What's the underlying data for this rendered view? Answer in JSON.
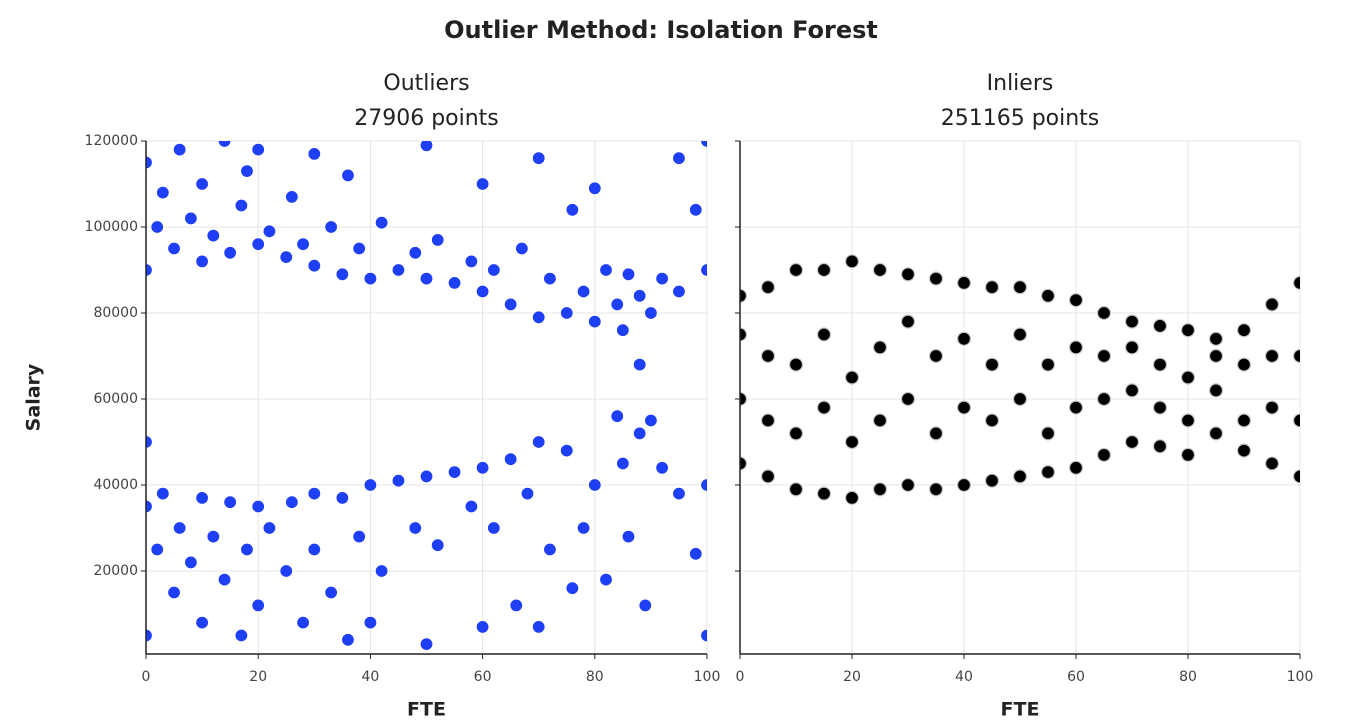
{
  "title": "Outlier Method: Isolation Forest",
  "chart_data": [
    {
      "type": "scatter",
      "title": "Outliers",
      "subtitle": "27906 points",
      "xlabel": "FTE",
      "ylabel": "Salary",
      "color": "#1f3ff5",
      "edgecolor": "#ffffff",
      "grid": true,
      "xlim": [
        0,
        100
      ],
      "xticks": [
        0,
        20,
        40,
        60,
        80,
        100
      ],
      "ylim": [
        700,
        120000
      ],
      "yticks": [
        20000,
        40000,
        60000,
        80000,
        100000,
        120000
      ],
      "x": [
        0,
        0,
        2,
        3,
        5,
        6,
        8,
        10,
        10,
        12,
        14,
        15,
        17,
        18,
        20,
        20,
        22,
        25,
        26,
        28,
        30,
        30,
        33,
        35,
        36,
        38,
        40,
        42,
        45,
        48,
        50,
        50,
        52,
        55,
        58,
        60,
        60,
        62,
        65,
        67,
        70,
        70,
        72,
        75,
        76,
        78,
        80,
        80,
        82,
        84,
        85,
        86,
        88,
        88,
        90,
        92,
        95,
        95,
        98,
        100,
        100,
        0,
        0,
        0,
        2,
        3,
        5,
        6,
        8,
        10,
        10,
        12,
        14,
        15,
        17,
        18,
        20,
        20,
        22,
        25,
        26,
        28,
        30,
        30,
        33,
        35,
        36,
        38,
        40,
        40,
        42,
        45,
        48,
        50,
        50,
        52,
        55,
        58,
        60,
        60,
        62,
        65,
        66,
        68,
        70,
        70,
        72,
        75,
        76,
        78,
        80,
        82,
        84,
        85,
        86,
        88,
        89,
        90,
        92,
        95,
        98,
        100,
        100
      ],
      "values": [
        90000,
        115000,
        100000,
        108000,
        95000,
        118000,
        102000,
        92000,
        110000,
        98000,
        120000,
        94000,
        105000,
        113000,
        96000,
        118000,
        99000,
        93000,
        107000,
        96000,
        91000,
        117000,
        100000,
        89000,
        112000,
        95000,
        88000,
        101000,
        90000,
        94000,
        88000,
        119000,
        97000,
        87000,
        92000,
        85000,
        110000,
        90000,
        82000,
        95000,
        79000,
        116000,
        88000,
        80000,
        104000,
        85000,
        78000,
        109000,
        90000,
        82000,
        76000,
        89000,
        84000,
        68000,
        80000,
        88000,
        116000,
        85000,
        104000,
        120000,
        90000,
        50000,
        35000,
        5000,
        25000,
        38000,
        15000,
        30000,
        22000,
        37000,
        8000,
        28000,
        18000,
        36000,
        5000,
        25000,
        35000,
        12000,
        30000,
        20000,
        36000,
        8000,
        38000,
        25000,
        15000,
        37000,
        4000,
        28000,
        40000,
        8000,
        20000,
        41000,
        30000,
        42000,
        3000,
        26000,
        43000,
        35000,
        44000,
        7000,
        30000,
        46000,
        12000,
        38000,
        50000,
        7000,
        25000,
        48000,
        16000,
        30000,
        40000,
        18000,
        56000,
        45000,
        28000,
        52000,
        12000,
        55000,
        44000,
        38000,
        24000,
        40000,
        5000
      ]
    },
    {
      "type": "scatter",
      "title": "Inliers",
      "subtitle": "251165 points",
      "xlabel": "FTE",
      "sharey": true,
      "color": "#000000",
      "edgecolor": "#c8c8c8",
      "grid": true,
      "xlim": [
        0,
        100
      ],
      "xticks": [
        0,
        20,
        40,
        60,
        80,
        100
      ],
      "x": [
        0,
        0,
        0,
        0,
        5,
        5,
        5,
        5,
        10,
        10,
        10,
        10,
        15,
        15,
        15,
        15,
        20,
        20,
        20,
        20,
        25,
        25,
        25,
        25,
        30,
        30,
        30,
        30,
        35,
        35,
        35,
        35,
        40,
        40,
        40,
        40,
        45,
        45,
        45,
        45,
        50,
        50,
        50,
        50,
        55,
        55,
        55,
        55,
        60,
        60,
        60,
        60,
        65,
        65,
        65,
        65,
        70,
        70,
        70,
        70,
        75,
        75,
        75,
        75,
        80,
        80,
        80,
        80,
        85,
        85,
        85,
        85,
        90,
        90,
        90,
        90,
        95,
        95,
        95,
        95,
        100,
        100,
        100,
        100
      ],
      "values": [
        45000,
        60000,
        75000,
        84000,
        42000,
        55000,
        70000,
        86000,
        39000,
        52000,
        68000,
        90000,
        38000,
        58000,
        75000,
        90000,
        37000,
        50000,
        65000,
        92000,
        39000,
        55000,
        72000,
        90000,
        40000,
        60000,
        78000,
        89000,
        39000,
        52000,
        70000,
        88000,
        40000,
        58000,
        74000,
        87000,
        41000,
        55000,
        68000,
        86000,
        42000,
        60000,
        75000,
        86000,
        43000,
        52000,
        68000,
        84000,
        44000,
        58000,
        72000,
        83000,
        47000,
        60000,
        70000,
        80000,
        50000,
        62000,
        72000,
        78000,
        49000,
        58000,
        68000,
        77000,
        47000,
        55000,
        65000,
        76000,
        52000,
        62000,
        70000,
        74000,
        48000,
        55000,
        68000,
        76000,
        45000,
        58000,
        70000,
        82000,
        42000,
        55000,
        70000,
        87000
      ]
    }
  ]
}
